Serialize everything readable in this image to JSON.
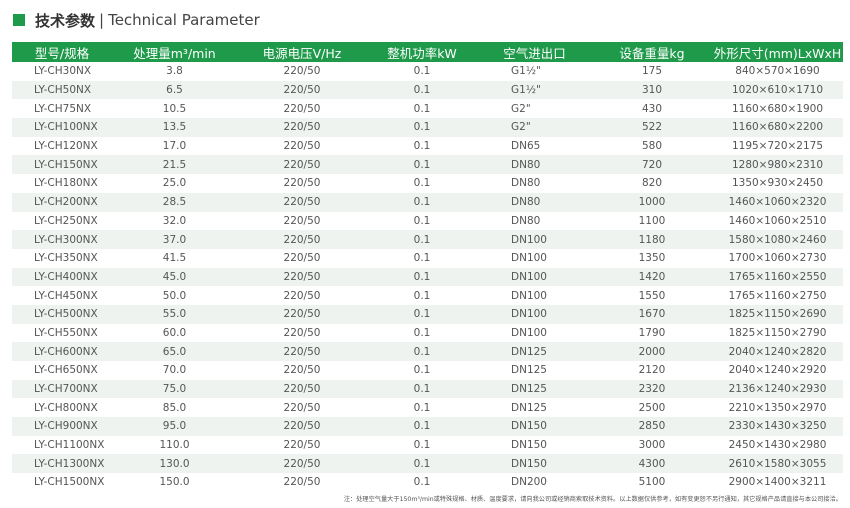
{
  "title": {
    "cn": "技术参数",
    "sep": "|",
    "en": "Technical Parameter"
  },
  "colors": {
    "accent": "#1e9a4a",
    "alt_row": "#eef3f0"
  },
  "table": {
    "headers": [
      "型号/规格",
      "处理量m³/min",
      "电源电压V/Hz",
      "整机功率kW",
      "空气进出口",
      "设备重量kg",
      "外形尺寸(mm)LxWxH"
    ],
    "rows": [
      [
        "LY-CH30NX",
        "3.8",
        "220/50",
        "0.1",
        "G1½\"",
        "175",
        "840×570×1690"
      ],
      [
        "LY-CH50NX",
        "6.5",
        "220/50",
        "0.1",
        "G1½\"",
        "310",
        "1020×610×1710"
      ],
      [
        "LY-CH75NX",
        "10.5",
        "220/50",
        "0.1",
        "G2\"",
        "430",
        "1160×680×1900"
      ],
      [
        "LY-CH100NX",
        "13.5",
        "220/50",
        "0.1",
        "G2\"",
        "522",
        "1160×680×2200"
      ],
      [
        "LY-CH120NX",
        "17.0",
        "220/50",
        "0.1",
        "DN65",
        "580",
        "1195×720×2175"
      ],
      [
        "LY-CH150NX",
        "21.5",
        "220/50",
        "0.1",
        "DN80",
        "720",
        "1280×980×2310"
      ],
      [
        "LY-CH180NX",
        "25.0",
        "220/50",
        "0.1",
        "DN80",
        "820",
        "1350×930×2450"
      ],
      [
        "LY-CH200NX",
        "28.5",
        "220/50",
        "0.1",
        "DN80",
        "1000",
        "1460×1060×2320"
      ],
      [
        "LY-CH250NX",
        "32.0",
        "220/50",
        "0.1",
        "DN80",
        "1100",
        "1460×1060×2510"
      ],
      [
        "LY-CH300NX",
        "37.0",
        "220/50",
        "0.1",
        "DN100",
        "1180",
        "1580×1080×2460"
      ],
      [
        "LY-CH350NX",
        "41.5",
        "220/50",
        "0.1",
        "DN100",
        "1350",
        "1700×1060×2730"
      ],
      [
        "LY-CH400NX",
        "45.0",
        "220/50",
        "0.1",
        "DN100",
        "1420",
        "1765×1160×2550"
      ],
      [
        "LY-CH450NX",
        "50.0",
        "220/50",
        "0.1",
        "DN100",
        "1550",
        "1765×1160×2750"
      ],
      [
        "LY-CH500NX",
        "55.0",
        "220/50",
        "0.1",
        "DN100",
        "1670",
        "1825×1150×2690"
      ],
      [
        "LY-CH550NX",
        "60.0",
        "220/50",
        "0.1",
        "DN100",
        "1790",
        "1825×1150×2790"
      ],
      [
        "LY-CH600NX",
        "65.0",
        "220/50",
        "0.1",
        "DN125",
        "2000",
        "2040×1240×2820"
      ],
      [
        "LY-CH650NX",
        "70.0",
        "220/50",
        "0.1",
        "DN125",
        "2120",
        "2040×1240×2920"
      ],
      [
        "LY-CH700NX",
        "75.0",
        "220/50",
        "0.1",
        "DN125",
        "2320",
        "2136×1240×2930"
      ],
      [
        "LY-CH800NX",
        "85.0",
        "220/50",
        "0.1",
        "DN125",
        "2500",
        "2210×1350×2970"
      ],
      [
        "LY-CH900NX",
        "95.0",
        "220/50",
        "0.1",
        "DN150",
        "2850",
        "2330×1430×3250"
      ],
      [
        "LY-CH1100NX",
        "110.0",
        "220/50",
        "0.1",
        "DN150",
        "3000",
        "2450×1430×2980"
      ],
      [
        "LY-CH1300NX",
        "130.0",
        "220/50",
        "0.1",
        "DN150",
        "4300",
        "2610×1580×3055"
      ],
      [
        "LY-CH1500NX",
        "150.0",
        "220/50",
        "0.1",
        "DN200",
        "5100",
        "2900×1400×3211"
      ]
    ]
  },
  "note": "注：处理空气量大于150m³/min或特殊规格、材质、温度要求，请向我公司或经销商索取技术资料。以上数据仅供参考，如有变更恕不另行通知，其它规格产品请直接与本公司接洽。"
}
